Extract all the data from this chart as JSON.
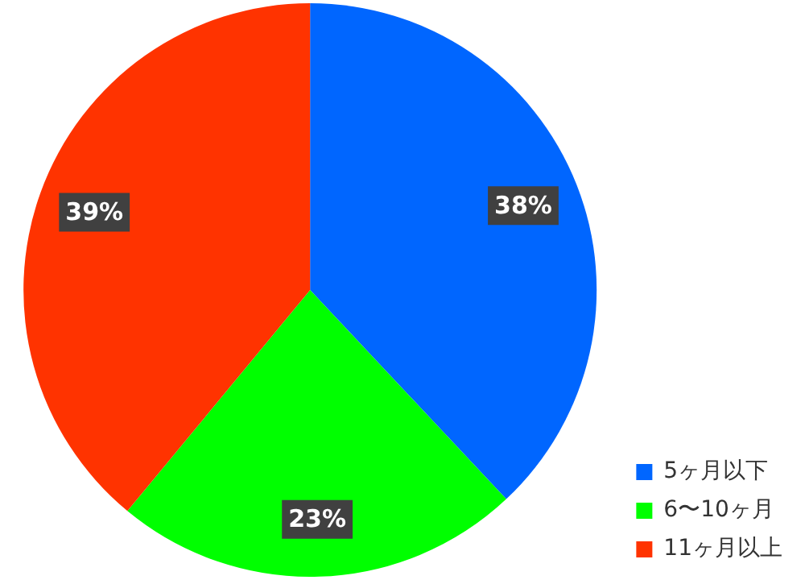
{
  "chart_data": {
    "type": "pie",
    "categories": [
      "5ヶ月以下",
      "6〜10ヶ月",
      "11ヶ月以上"
    ],
    "values": [
      38,
      23,
      39
    ],
    "colors": [
      "#0066ff",
      "#00ff00",
      "#ff3300"
    ],
    "value_labels": [
      "38%",
      "23%",
      "39%"
    ],
    "legend": "bottom right"
  }
}
